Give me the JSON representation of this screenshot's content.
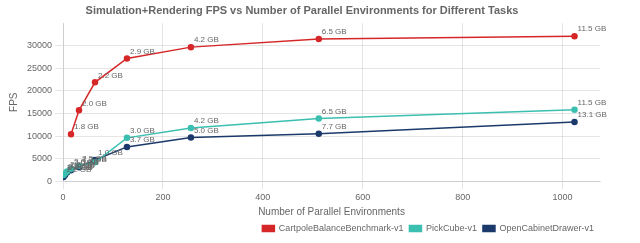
{
  "chart_data": {
    "type": "line",
    "title": "Simulation+Rendering FPS vs Number of Parallel Environments for Different Tasks",
    "xlabel": "Number of Parallel Environments",
    "ylabel": "FPS",
    "xlim": [
      0,
      1075
    ],
    "xticks": [
      0,
      200,
      400,
      600,
      800,
      1000
    ],
    "ylim": [
      0,
      35000
    ],
    "yticks": [
      0,
      5000,
      10000,
      15000,
      20000,
      25000,
      30000
    ],
    "grid": true,
    "legend": "lower right",
    "marker": "circle",
    "series": [
      {
        "name": "CartpoleBalanceBenchmark-v1",
        "color": "#d62728",
        "x": [
          16,
          32,
          64,
          128,
          256,
          512,
          1024
        ],
        "values": [
          10400,
          15700,
          21900,
          27200,
          29700,
          31500,
          32100
        ],
        "annotations": [
          {
            "x": 16,
            "y": 10400,
            "text": "1.8 GB"
          },
          {
            "x": 32,
            "y": 15700,
            "text": "2.0 GB"
          },
          {
            "x": 64,
            "y": 21900,
            "text": "2.2 GB"
          },
          {
            "x": 128,
            "y": 27200,
            "text": "2.9 GB"
          },
          {
            "x": 256,
            "y": 29700,
            "text": "4.2 GB"
          },
          {
            "x": 512,
            "y": 31500,
            "text": "6.5 GB"
          },
          {
            "x": 1024,
            "y": 32100,
            "text": "11.5 GB"
          }
        ]
      },
      {
        "name": "PickCube-v1",
        "color": "#3bbfb0",
        "x": [
          1,
          4,
          8,
          16,
          32,
          64,
          128,
          256,
          512,
          1024
        ],
        "values": [
          1350,
          1750,
          2150,
          2700,
          3400,
          4200,
          9600,
          11800,
          13900,
          15800
        ],
        "annotations": [
          {
            "x": 1,
            "y": 1350,
            "text": "1.9 GB"
          },
          {
            "x": 4,
            "y": 1750,
            "text": "2.0 GB"
          },
          {
            "x": 8,
            "y": 2150,
            "text": "2.5 GB"
          },
          {
            "x": 16,
            "y": 2700,
            "text": "2.0 GB"
          },
          {
            "x": 32,
            "y": 3400,
            "text": "7.5 GB"
          },
          {
            "x": 128,
            "y": 9600,
            "text": "3.0 GB"
          },
          {
            "x": 256,
            "y": 11800,
            "text": "4.2 GB"
          },
          {
            "x": 512,
            "y": 13900,
            "text": "6.5 GB"
          },
          {
            "x": 1024,
            "y": 15800,
            "text": "11.5 GB"
          }
        ]
      },
      {
        "name": "OpenCabinetDrawer-v1",
        "color": "#1b3a6b",
        "x": [
          1,
          4,
          8,
          16,
          32,
          64,
          128,
          256,
          512,
          1024
        ],
        "values": [
          950,
          1400,
          1900,
          2450,
          3100,
          4700,
          7600,
          9700,
          10500,
          13100
        ],
        "annotations": [
          {
            "x": 1,
            "y": 950,
            "text": "2.2 GB"
          },
          {
            "x": 4,
            "y": 1400,
            "text": "2.4 GB"
          },
          {
            "x": 8,
            "y": 1900,
            "text": "1.6 GB"
          },
          {
            "x": 16,
            "y": 2450,
            "text": "2.0 GB"
          },
          {
            "x": 32,
            "y": 3100,
            "text": "3.7 GB"
          },
          {
            "x": 64,
            "y": 4700,
            "text": "1.0 GB"
          },
          {
            "x": 128,
            "y": 7600,
            "text": "3.7 GB"
          },
          {
            "x": 256,
            "y": 9700,
            "text": "5.0 GB"
          },
          {
            "x": 512,
            "y": 10500,
            "text": "7.7 GB"
          },
          {
            "x": 1024,
            "y": 13100,
            "text": "13.1 GB"
          }
        ]
      }
    ]
  }
}
